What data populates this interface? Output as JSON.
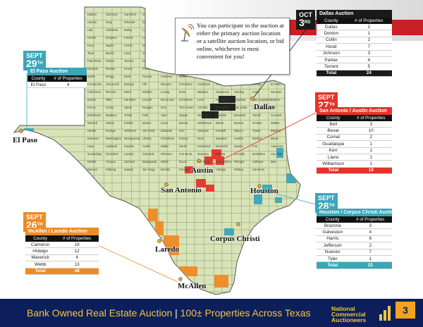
{
  "callout": {
    "text": "You can participate in the auction at either the primary auction location or a satellite auction location, or bid online, whichever is most convenient for you!"
  },
  "footer": {
    "title": "Bank Owned Real Estate Auction",
    "separator": "|",
    "subtitle": "100± Properties Across Texas",
    "page_number": "3"
  },
  "brand": {
    "line1": "National",
    "line2": "Commercial",
    "line3": "Auctioneers"
  },
  "cities": {
    "el_paso": "El Paso",
    "dallas": "Dallas",
    "austin": "Austin",
    "san_antonio": "San Antonio",
    "houston": "Houston",
    "corpus_christi": "Corpus Christi",
    "laredo": "Laredo",
    "mcallen": "McAllen"
  },
  "map_county_labels": [
    "Dallam",
    "Sherman",
    "Hansford",
    "Ochiltree",
    "Lipscomb",
    "Hartley",
    "Moore",
    "Hutchinson",
    "Roberts",
    "Hemphill",
    "Oldham",
    "Potter",
    "Carson",
    "Gray",
    "Wheeler",
    "Deaf Smith",
    "Randall",
    "Armstrong",
    "Donley",
    "Collingsworth",
    "Parmer",
    "Castro",
    "Swisher",
    "Briscoe",
    "Hall",
    "Childress",
    "Bailey",
    "Lamb",
    "Hale",
    "Floyd",
    "Motley",
    "Cottle",
    "Hardeman",
    "Wilbarger",
    "Wichita",
    "Clay",
    "Cooke",
    "Grayson",
    "Fannin",
    "Lamar",
    "Red River",
    "Bowie",
    "Cochran",
    "Hockley",
    "Lubbock",
    "Crosby",
    "Dickens",
    "King",
    "Knox",
    "Baylor",
    "Archer",
    "Montague",
    "Jack",
    "Wise",
    "Denton",
    "Collin",
    "Hunt",
    "Delta",
    "Hopkins",
    "Franklin",
    "Titus",
    "Morris",
    "Cass",
    "Yoakum",
    "Terry",
    "Lynn",
    "Garza",
    "Kent",
    "Stonewall",
    "Haskell",
    "Throckmorton",
    "Young",
    "Palo Pinto",
    "Parker",
    "Tarrant",
    "Dallas",
    "Rockwall",
    "Kaufman",
    "Van Zandt",
    "Wood",
    "Upshur",
    "Marion",
    "Harrison",
    "Gaines",
    "Dawson",
    "Borden",
    "Scurry",
    "Fisher",
    "Jones",
    "Shackelford",
    "Stephens",
    "Erath",
    "Hood",
    "Johnson",
    "Ellis",
    "Henderson",
    "Smith",
    "Gregg",
    "Rusk",
    "Panola",
    "Andrews",
    "Martin",
    "Howard",
    "Mitchell",
    "Nolan",
    "Taylor",
    "Callahan",
    "Eastland",
    "Comanche",
    "Somervell",
    "Bosque",
    "Hill",
    "Navarro",
    "Freestone",
    "Anderson",
    "Cherokee",
    "Nacogdoches",
    "Shelby",
    "El Paso",
    "Hudspeth",
    "Culberson",
    "Reeves",
    "Ward",
    "Winkler",
    "Loving",
    "Ector",
    "Midland",
    "Glasscock",
    "Sterling",
    "Coke",
    "Runnels",
    "Coleman",
    "Brown",
    "Mills",
    "Hamilton",
    "Coryell",
    "McLennan",
    "Limestone",
    "Leon",
    "Houston",
    "Angelina",
    "San Augustine",
    "Sabine",
    "Jeff Davis",
    "Pecos",
    "Crane",
    "Upton",
    "Reagan",
    "Irion",
    "Tom Green",
    "Concho",
    "McCulloch",
    "San Saba",
    "Lampasas",
    "Bell",
    "Falls",
    "Robertson",
    "Madison",
    "Trinity",
    "Polk",
    "Tyler",
    "Jasper",
    "Newton",
    "Presidio",
    "Brewster",
    "Terrell",
    "Crockett",
    "Schleicher",
    "Menard",
    "Sutton",
    "Kimble",
    "Mason",
    "Llano",
    "Burnet",
    "Williamson",
    "Milam",
    "Brazos",
    "Grimes",
    "Walker",
    "San Jacinto",
    "Hardin",
    "Orange",
    "Jefferson",
    "Val Verde",
    "Edwards",
    "Kerr",
    "Gillespie",
    "Kendall",
    "Blanco",
    "Travis",
    "Bastrop",
    "Lee",
    "Burleson",
    "Washington",
    "Montgomery",
    "Liberty",
    "Chambers",
    "Kinney",
    "Real",
    "Bandera",
    "Uvalde",
    "Medina",
    "Bexar",
    "Comal",
    "Hays",
    "Caldwell",
    "Fayette",
    "Austin",
    "Waller",
    "Harris",
    "Galveston",
    "Maverick",
    "Zavala",
    "Frio",
    "Atascosa",
    "Wilson",
    "Guadalupe",
    "Gonzales",
    "Lavaca",
    "Colorado",
    "Wharton",
    "Fort Bend",
    "Brazoria",
    "Dimmit",
    "La Salle",
    "McMullen",
    "Live Oak",
    "Karnes",
    "DeWitt",
    "Victoria",
    "Jackson",
    "Matagorda",
    "Webb",
    "Duval",
    "Jim Wells",
    "San Patricio",
    "Refugio",
    "Calhoun",
    "Bee",
    "Goliad",
    "Nueces",
    "Kleberg",
    "Zapata",
    "Jim Hogg",
    "Brooks",
    "Kenedy",
    "Starr",
    "Hidalgo",
    "Willacy",
    "Cameron"
  ],
  "auctions": [
    {
      "id": "el_paso",
      "date_month": "SEPT",
      "date_day": "29",
      "date_suffix": "TH",
      "title": "El Paso Auction",
      "col_county": "County",
      "col_props": "# of Properties",
      "rows": [
        {
          "county": "El Paso",
          "properties": "4"
        }
      ],
      "total_label": "",
      "total": "",
      "color": "#3aa6b9"
    },
    {
      "id": "dallas",
      "date_month": "OCT",
      "date_day": "3",
      "date_suffix": "RD",
      "title": "Dallas Auction",
      "col_county": "County",
      "col_props": "# of Properties",
      "rows": [
        {
          "county": "Dallas",
          "properties": "2"
        },
        {
          "county": "Denton",
          "properties": "1"
        },
        {
          "county": "Collin",
          "properties": "2"
        },
        {
          "county": "Hood",
          "properties": "7"
        },
        {
          "county": "Johnson",
          "properties": "3"
        },
        {
          "county": "Parker",
          "properties": "4"
        },
        {
          "county": "Tarrant",
          "properties": "5"
        }
      ],
      "total_label": "Total",
      "total": "24",
      "color": "#1a1a1a"
    },
    {
      "id": "san_antonio",
      "date_month": "SEPT",
      "date_day": "27",
      "date_suffix": "TH",
      "title": "San Antonio / Austin Auction",
      "col_county": "County",
      "col_props": "# of Properties",
      "rows": [
        {
          "county": "Bell",
          "properties": "3"
        },
        {
          "county": "Bexar",
          "properties": "10"
        },
        {
          "county": "Comal",
          "properties": "2"
        },
        {
          "county": "Guadalupe",
          "properties": "1"
        },
        {
          "county": "Kerr",
          "properties": "1"
        },
        {
          "county": "Llano",
          "properties": "1"
        },
        {
          "county": "Williamson",
          "properties": "1"
        }
      ],
      "total_label": "Total",
      "total": "19",
      "color": "#e5332a"
    },
    {
      "id": "houston",
      "date_month": "SEPT",
      "date_day": "28",
      "date_suffix": "TH",
      "title": "Houston / Corpus Christi Auction",
      "col_county": "County",
      "col_props": "# of Properties",
      "rows": [
        {
          "county": "Brazoria",
          "properties": "3"
        },
        {
          "county": "Galveston",
          "properties": "4"
        },
        {
          "county": "Harris",
          "properties": "6"
        },
        {
          "county": "Jefferson",
          "properties": "2"
        },
        {
          "county": "Nueces",
          "properties": "7"
        },
        {
          "county": "Tyler",
          "properties": "1"
        }
      ],
      "total_label": "Total",
      "total": "23",
      "color": "#3aa6b9"
    },
    {
      "id": "mcallen",
      "date_month": "SEPT",
      "date_day": "26",
      "date_suffix": "TH",
      "title": "McAllen / Laredo Auction",
      "col_county": "County",
      "col_props": "# of Properties",
      "rows": [
        {
          "county": "Cameron",
          "properties": "19"
        },
        {
          "county": "Hidalgo",
          "properties": "12"
        },
        {
          "county": "Maverick",
          "properties": "4"
        },
        {
          "county": "Webb",
          "properties": "13"
        }
      ],
      "total_label": "Total",
      "total": "48",
      "color": "#f08a24"
    }
  ],
  "colors": {
    "land": "#d8e3b7",
    "county_border": "#8a9670",
    "teal": "#3aa6b9",
    "red": "#e5332a",
    "orange": "#f08a24",
    "navy": "#0c1f5b",
    "gold": "#f2c63d"
  }
}
